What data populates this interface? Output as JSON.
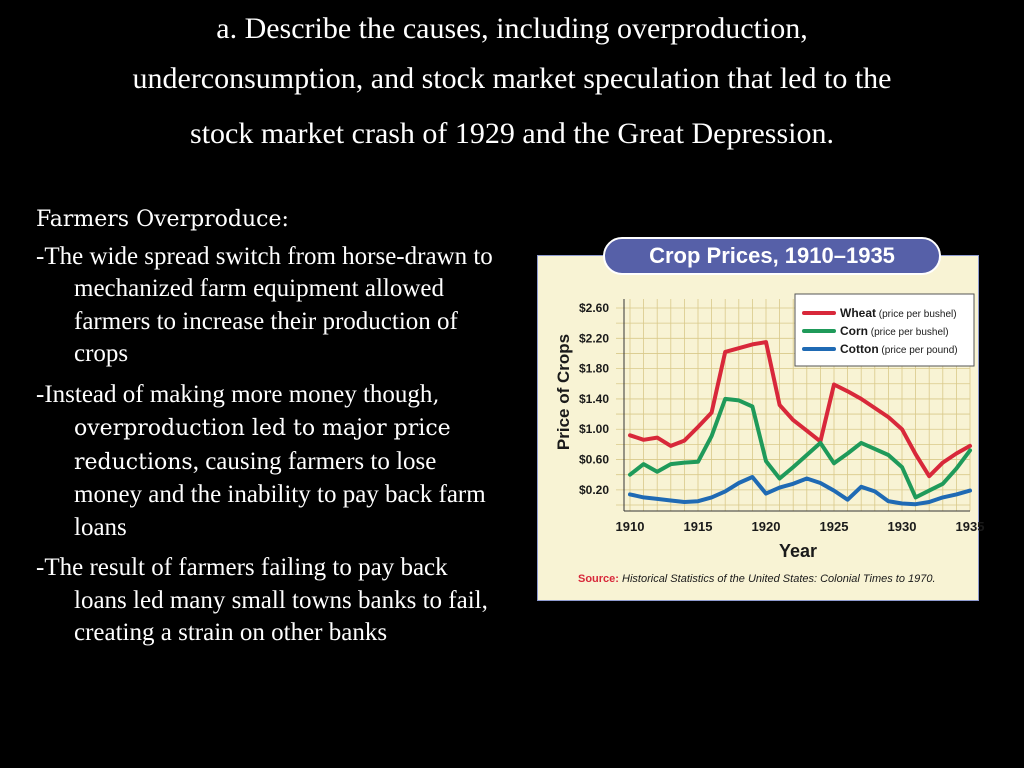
{
  "slide": {
    "title_lines": [
      "a. Describe the causes, including overproduction,",
      "underconsumption, and stock market speculation that led to the",
      "stock market crash of 1929 and the Great Depression."
    ],
    "heading": "Farmers Overproduce:",
    "bullet1": "-The wide spread switch from horse-drawn to mechanized farm equipment allowed farmers to increase their production of crops",
    "bullet2_prefix": "-Instead of making more money though",
    "bullet2_emphasis": ", overproduction led to major price reductions",
    "bullet2_suffix": ", causing farmers to lose money and the inability to pay back farm loans",
    "bullet3": "-The result of farmers failing to pay back loans led many small towns banks to fail, creating a strain on other banks"
  },
  "chart_data": {
    "type": "line",
    "title": "Crop Prices, 1910–1935",
    "xlabel": "Year",
    "ylabel": "Price of Crops",
    "x_ticks": [
      "1910",
      "1915",
      "1920",
      "1925",
      "1930",
      "1935"
    ],
    "y_ticks": [
      "$2.60",
      "$2.20",
      "$1.80",
      "$1.40",
      "$1.00",
      "$0.60",
      "$0.20"
    ],
    "xlim": [
      1910,
      1935
    ],
    "ylim": [
      0,
      2.75
    ],
    "grid": true,
    "legend_position": "top-right",
    "source_label": "Source:",
    "source_text": " Historical Statistics of the United States: Colonial Times to 1970.",
    "x": [
      1910,
      1911,
      1912,
      1913,
      1914,
      1915,
      1916,
      1917,
      1918,
      1919,
      1920,
      1921,
      1922,
      1923,
      1924,
      1925,
      1926,
      1927,
      1928,
      1929,
      1930,
      1931,
      1932,
      1933,
      1934,
      1935
    ],
    "series": [
      {
        "name": "Wheat",
        "unit_note": " (price per bushel)",
        "color": "#d8283a",
        "values": [
          0.92,
          0.86,
          0.89,
          0.78,
          0.85,
          1.03,
          1.22,
          2.02,
          2.07,
          2.12,
          2.15,
          1.32,
          1.12,
          0.98,
          0.84,
          1.59,
          1.5,
          1.4,
          1.28,
          1.16,
          1.0,
          0.67,
          0.38,
          0.56,
          0.68,
          0.78
        ]
      },
      {
        "name": "Corn",
        "unit_note": " (price per bushel)",
        "color": "#1f9a5a",
        "values": [
          0.4,
          0.54,
          0.44,
          0.54,
          0.56,
          0.57,
          0.91,
          1.4,
          1.38,
          1.3,
          0.58,
          0.35,
          0.5,
          0.66,
          0.82,
          0.55,
          0.68,
          0.82,
          0.74,
          0.66,
          0.5,
          0.1,
          0.19,
          0.28,
          0.48,
          0.72
        ]
      },
      {
        "name": "Cotton",
        "unit_note": " (price per pound)",
        "color": "#1f6ab4",
        "values": [
          0.14,
          0.1,
          0.08,
          0.06,
          0.04,
          0.05,
          0.1,
          0.18,
          0.29,
          0.37,
          0.15,
          0.23,
          0.28,
          0.35,
          0.29,
          0.19,
          0.07,
          0.24,
          0.18,
          0.05,
          0.02,
          0.01,
          0.04,
          0.1,
          0.14,
          0.19
        ]
      }
    ]
  }
}
